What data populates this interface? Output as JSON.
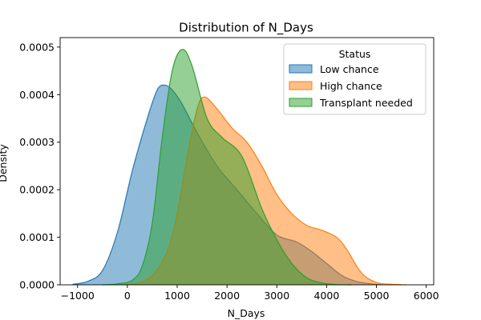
{
  "chart_data": {
    "type": "area",
    "title": "Distribution of N_Days",
    "xlabel": "N_Days",
    "ylabel": "Density",
    "xlim": [
      -1350,
      6150
    ],
    "ylim": [
      0,
      0.00052
    ],
    "x_ticks": [
      -1000,
      0,
      1000,
      2000,
      3000,
      4000,
      5000,
      6000
    ],
    "x_tick_labels": [
      "−1000",
      "0",
      "1000",
      "2000",
      "3000",
      "4000",
      "5000",
      "6000"
    ],
    "y_ticks": [
      0,
      0.0001,
      0.0002,
      0.0003,
      0.0004,
      0.0005
    ],
    "y_tick_labels": [
      "0.0000",
      "0.0001",
      "0.0002",
      "0.0003",
      "0.0004",
      "0.0005"
    ],
    "grid": false,
    "legend": {
      "title": "Status",
      "placement": "top-right"
    },
    "series": [
      {
        "name": "Low chance",
        "color": "#1f77b4",
        "x": [
          -1100,
          -800,
          -500,
          -200,
          100,
          400,
          600,
          750,
          900,
          1100,
          1400,
          1800,
          2200,
          2600,
          3000,
          3400,
          3700,
          4000,
          4300,
          4600,
          4900,
          5100
        ],
        "y": [
          1e-06,
          7e-06,
          3e-05,
          0.00011,
          0.00024,
          0.00035,
          0.00041,
          0.00042,
          0.00041,
          0.00038,
          0.00032,
          0.00025,
          0.0002,
          0.00015,
          0.000105,
          9e-05,
          7e-05,
          4.5e-05,
          2e-05,
          7e-06,
          2e-06,
          0.0
        ]
      },
      {
        "name": "High chance",
        "color": "#ff7f0e",
        "x": [
          -100,
          200,
          500,
          800,
          1000,
          1200,
          1400,
          1550,
          1800,
          2100,
          2400,
          2700,
          3000,
          3300,
          3600,
          3900,
          4200,
          4400,
          4700,
          5000,
          5300,
          5600
        ],
        "y": [
          0.0,
          3e-06,
          2e-05,
          7e-05,
          0.00015,
          0.00027,
          0.00037,
          0.000395,
          0.00037,
          0.00033,
          0.0003,
          0.00025,
          0.00019,
          0.00015,
          0.000125,
          0.000115,
          0.0001,
          7.5e-05,
          2.5e-05,
          5e-06,
          1e-06,
          0.0
        ]
      },
      {
        "name": "Transplant needed",
        "color": "#2ca02c",
        "x": [
          -500,
          -200,
          100,
          300,
          500,
          700,
          900,
          1100,
          1300,
          1600,
          1900,
          2300,
          2700,
          3000,
          3300,
          3600,
          3900,
          4200,
          4500
        ],
        "y": [
          0.0,
          2e-06,
          1e-05,
          4e-05,
          0.00013,
          0.00031,
          0.00045,
          0.000495,
          0.00046,
          0.00035,
          0.00031,
          0.00027,
          0.00016,
          9.5e-05,
          4.5e-05,
          1.5e-05,
          4e-06,
          5e-07,
          0.0
        ]
      }
    ]
  }
}
